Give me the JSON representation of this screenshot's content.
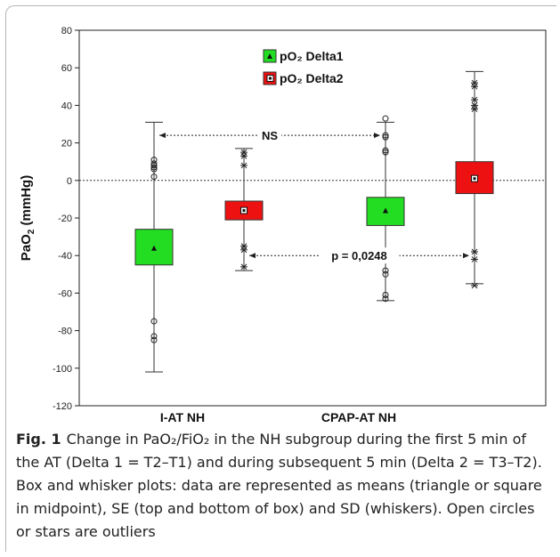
{
  "chart_data": {
    "type": "box",
    "y_axis_label": "PaO₂ (mmHg)",
    "ylim": [
      -120,
      80
    ],
    "ytick_step": 20,
    "categories": [
      "I-AT NH",
      "CPAP-AT NH"
    ],
    "series": [
      {
        "name": "pO₂ Delta1",
        "color": "#22dd22",
        "marker": "triangle",
        "boxes": [
          {
            "category": "I-AT NH",
            "mean": -36,
            "se_low": -45,
            "se_high": -26,
            "whisker_low": -102,
            "whisker_high": 31,
            "outliers_circle": [
              11,
              9,
              8,
              7,
              6,
              2,
              -75,
              -83,
              -85
            ],
            "outliers_star": []
          },
          {
            "category": "CPAP-AT NH",
            "mean": -16,
            "se_low": -24,
            "se_high": -9,
            "whisker_low": -64,
            "whisker_high": 31,
            "outliers_circle": [
              33,
              24,
              23,
              16,
              15,
              -48,
              -50,
              -61,
              -63
            ],
            "outliers_star": []
          }
        ]
      },
      {
        "name": "pO₂ Delta2",
        "color": "#ee1111",
        "marker": "square",
        "boxes": [
          {
            "category": "I-AT NH",
            "mean": -16,
            "se_low": -21,
            "se_high": -11,
            "whisker_low": -48,
            "whisker_high": 17,
            "outliers_circle": [],
            "outliers_star": [
              15,
              13,
              8,
              -35,
              -37,
              -46
            ]
          },
          {
            "category": "CPAP-AT NH",
            "mean": 1,
            "se_low": -7,
            "se_high": 10,
            "whisker_low": -55,
            "whisker_high": 58,
            "outliers_circle": [],
            "outliers_star": [
              52,
              50,
              43,
              40,
              38,
              -38,
              -42,
              -56
            ]
          }
        ]
      }
    ],
    "reference_line_y": 0,
    "annotations": [
      {
        "text": "NS",
        "y": 24,
        "from": "I-AT NH",
        "to": "CPAP-AT NH",
        "series_pair": [
          0,
          0
        ]
      },
      {
        "text": "p = 0,0248",
        "y": -40,
        "from": "I-AT NH",
        "to": "CPAP-AT NH",
        "series_pair": [
          1,
          1
        ]
      }
    ]
  },
  "caption": {
    "label": "Fig. 1",
    "text": "Change in PaO₂/FiO₂ in the NH subgroup during the first 5 min of the AT (Delta 1 = T2–T1) and during subsequent 5 min (Delta 2 = T3–T2). Box and whisker plots: data are represented as means (triangle or square in midpoint), SE (top and bottom of box) and SD (whiskers). Open circles or stars are outliers"
  }
}
